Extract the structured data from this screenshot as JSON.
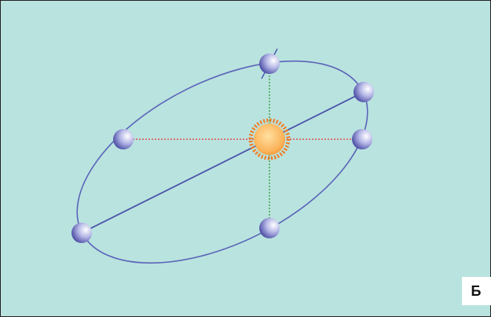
{
  "label": "Б"
}
